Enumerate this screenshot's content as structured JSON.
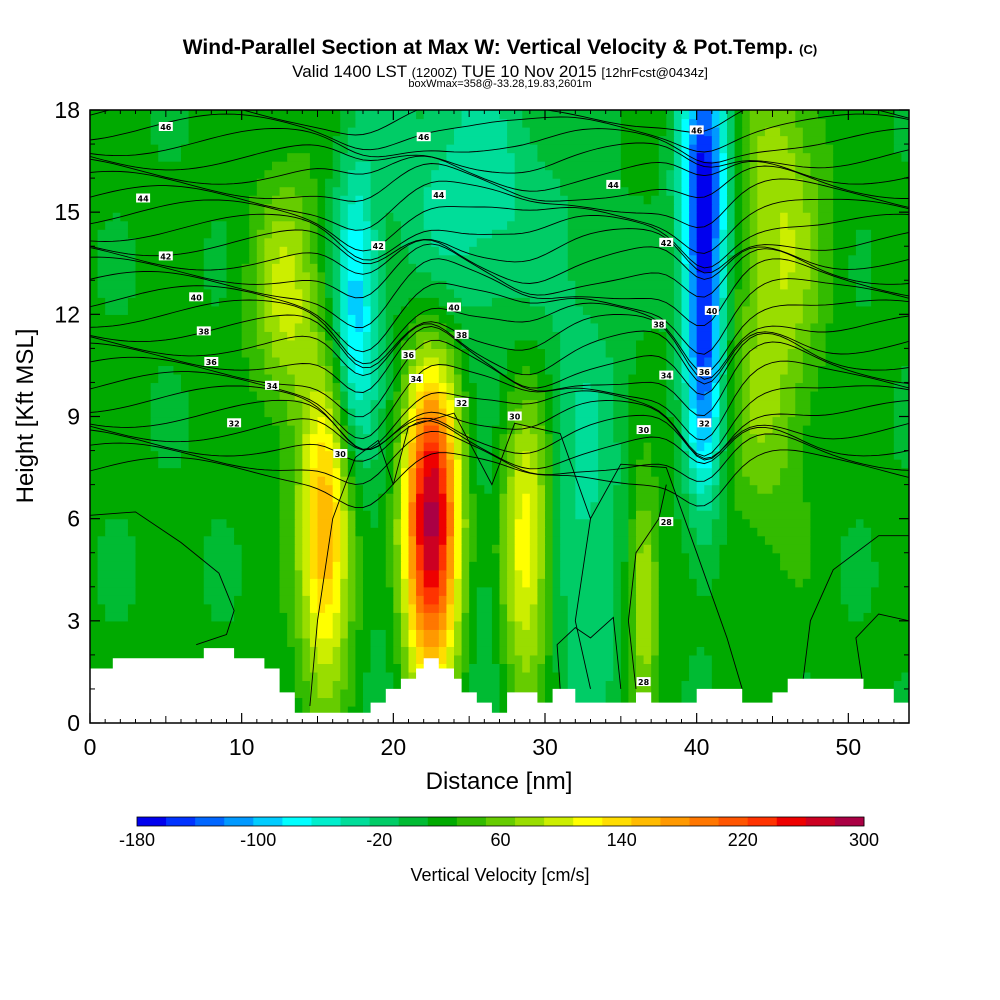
{
  "header": {
    "title": "Wind-Parallel Section at Max W: Vertical Velocity & Pot.Temp.",
    "copyright": "(C)",
    "valid_main": "Valid 1400 LST",
    "valid_utc": "(1200Z)",
    "valid_date": "TUE 10 Nov 2015",
    "forecast": "[12hrFcst@0434z]",
    "box_info": "boxWmax=358@-33.28,19.83,2601m"
  },
  "chart_data": {
    "type": "heatmap",
    "xlabel": "Distance [nm]",
    "ylabel": "Height [Kft MSL]",
    "xlim": [
      0,
      54
    ],
    "ylim": [
      0,
      18
    ],
    "x_ticks": [
      0,
      10,
      20,
      30,
      40,
      50
    ],
    "y_ticks": [
      0,
      3,
      6,
      9,
      12,
      15,
      18
    ],
    "colorbar": {
      "title": "Vertical Velocity [cm/s]",
      "min": -180,
      "max": 300,
      "step": 20,
      "tick_labels": [
        "-180",
        "-100",
        "-20",
        "60",
        "140",
        "220",
        "300"
      ],
      "tick_values": [
        -180,
        -100,
        -20,
        60,
        140,
        220,
        300
      ],
      "colors": [
        "#0000ee",
        "#0033ff",
        "#0066ff",
        "#0099ff",
        "#00ccff",
        "#00ffff",
        "#00eecc",
        "#00dd99",
        "#00cc66",
        "#00bb33",
        "#00aa00",
        "#33bb00",
        "#66cc00",
        "#99dd00",
        "#ccee00",
        "#ffff00",
        "#ffdd00",
        "#ffbb00",
        "#ff9900",
        "#ff7700",
        "#ff5500",
        "#ff3300",
        "#ee0000",
        "#cc0022",
        "#aa0044"
      ]
    },
    "updrafts": [
      {
        "x": 15.5,
        "z": 5.5,
        "w": 160,
        "sx": 1.2,
        "sz": 3.0
      },
      {
        "x": 22.5,
        "z": 5.8,
        "w": 290,
        "sx": 1.3,
        "sz": 3.2
      },
      {
        "x": 28.8,
        "z": 5.2,
        "w": 120,
        "sx": 1.2,
        "sz": 3.0
      },
      {
        "x": 36.5,
        "z": 3.8,
        "w": 90,
        "sx": 0.7,
        "sz": 2.2
      },
      {
        "x": 13.0,
        "z": 12.5,
        "w": 80,
        "sx": 1.6,
        "sz": 2.5
      },
      {
        "x": 45.5,
        "z": 15.0,
        "w": 70,
        "sx": 2.0,
        "sz": 3.5
      },
      {
        "x": 44.5,
        "z": 9.0,
        "w": 40,
        "sx": 2.0,
        "sz": 3.0
      }
    ],
    "downdrafts": [
      {
        "x": 17.5,
        "z": 12.0,
        "w": -110,
        "sx": 1.0,
        "sz": 3.0
      },
      {
        "x": 25.0,
        "z": 15.5,
        "w": -60,
        "sx": 4.0,
        "sz": 3.0
      },
      {
        "x": 32.5,
        "z": 6.0,
        "w": -50,
        "sx": 2.0,
        "sz": 5.0
      },
      {
        "x": 40.5,
        "z": 11.5,
        "w": -170,
        "sx": 0.9,
        "sz": 3.5
      },
      {
        "x": 40.5,
        "z": 16.5,
        "w": -130,
        "sx": 1.2,
        "sz": 2.5
      },
      {
        "x": 19.5,
        "z": 4.0,
        "w": -20,
        "sx": 1.0,
        "sz": 3.0
      },
      {
        "x": 26.0,
        "z": 4.0,
        "w": -30,
        "sx": 1.0,
        "sz": 3.0
      }
    ],
    "theta_contour_labels": [
      {
        "value": "46",
        "x": 5,
        "z": 17.5
      },
      {
        "value": "46",
        "x": 22,
        "z": 17.2
      },
      {
        "value": "46",
        "x": 40,
        "z": 17.4
      },
      {
        "value": "44",
        "x": 3.5,
        "z": 15.4
      },
      {
        "value": "44",
        "x": 23,
        "z": 15.5
      },
      {
        "value": "44",
        "x": 34.5,
        "z": 15.8
      },
      {
        "value": "42",
        "x": 5,
        "z": 13.7
      },
      {
        "value": "42",
        "x": 19,
        "z": 14.0
      },
      {
        "value": "42",
        "x": 38,
        "z": 14.1
      },
      {
        "value": "40",
        "x": 7,
        "z": 12.5
      },
      {
        "value": "40",
        "x": 24,
        "z": 12.2
      },
      {
        "value": "40",
        "x": 41,
        "z": 12.1
      },
      {
        "value": "38",
        "x": 7.5,
        "z": 11.5
      },
      {
        "value": "38",
        "x": 24.5,
        "z": 11.4
      },
      {
        "value": "38",
        "x": 37.5,
        "z": 11.7
      },
      {
        "value": "36",
        "x": 8,
        "z": 10.6
      },
      {
        "value": "36",
        "x": 21,
        "z": 10.8
      },
      {
        "value": "36",
        "x": 40.5,
        "z": 10.3
      },
      {
        "value": "34",
        "x": 12,
        "z": 9.9
      },
      {
        "value": "34",
        "x": 21.5,
        "z": 10.1
      },
      {
        "value": "34",
        "x": 38,
        "z": 10.2
      },
      {
        "value": "32",
        "x": 9.5,
        "z": 8.8
      },
      {
        "value": "32",
        "x": 24.5,
        "z": 9.4
      },
      {
        "value": "32",
        "x": 40.5,
        "z": 8.8
      },
      {
        "value": "30",
        "x": 16.5,
        "z": 7.9
      },
      {
        "value": "30",
        "x": 28,
        "z": 9.0
      },
      {
        "value": "30",
        "x": 36.5,
        "z": 8.6
      },
      {
        "value": "28",
        "x": 38,
        "z": 5.9
      },
      {
        "value": "28",
        "x": 36.5,
        "z": 1.2
      }
    ],
    "terrain": [
      [
        0,
        1.6
      ],
      [
        1.5,
        1.6
      ],
      [
        1.5,
        1.9
      ],
      [
        7.5,
        1.9
      ],
      [
        7.5,
        2.2
      ],
      [
        9.5,
        2.2
      ],
      [
        9.5,
        1.9
      ],
      [
        11.5,
        1.9
      ],
      [
        11.5,
        1.6
      ],
      [
        12.5,
        1.6
      ],
      [
        12.5,
        0.9
      ],
      [
        13.5,
        0.9
      ],
      [
        13.5,
        0.3
      ],
      [
        18.5,
        0.3
      ],
      [
        18.5,
        0.6
      ],
      [
        19.5,
        0.6
      ],
      [
        19.5,
        1.0
      ],
      [
        20.5,
        1.0
      ],
      [
        20.5,
        1.3
      ],
      [
        21.5,
        1.3
      ],
      [
        21.5,
        1.6
      ],
      [
        22.0,
        1.6
      ],
      [
        22.0,
        1.9
      ],
      [
        23.0,
        1.9
      ],
      [
        23.0,
        1.6
      ],
      [
        24.0,
        1.6
      ],
      [
        24.0,
        1.3
      ],
      [
        24.5,
        1.3
      ],
      [
        24.5,
        0.9
      ],
      [
        25.5,
        0.9
      ],
      [
        25.5,
        0.6
      ],
      [
        26.5,
        0.6
      ],
      [
        26.5,
        0.3
      ],
      [
        27.5,
        0.3
      ],
      [
        27.5,
        0.9
      ],
      [
        29.5,
        0.9
      ],
      [
        29.5,
        0.6
      ],
      [
        30.5,
        0.6
      ],
      [
        30.5,
        1.0
      ],
      [
        32.0,
        1.0
      ],
      [
        32.0,
        0.6
      ],
      [
        36.0,
        0.6
      ],
      [
        36.0,
        0.9
      ],
      [
        37.0,
        0.9
      ],
      [
        37.0,
        0.6
      ],
      [
        40.0,
        0.6
      ],
      [
        40.0,
        1.0
      ],
      [
        43.0,
        1.0
      ],
      [
        43.0,
        0.6
      ],
      [
        45.0,
        0.6
      ],
      [
        45.0,
        0.9
      ],
      [
        46.0,
        0.9
      ],
      [
        46.0,
        1.3
      ],
      [
        51.0,
        1.3
      ],
      [
        51.0,
        1.0
      ],
      [
        53.0,
        1.0
      ],
      [
        53.0,
        0.6
      ],
      [
        54,
        0.6
      ]
    ]
  }
}
